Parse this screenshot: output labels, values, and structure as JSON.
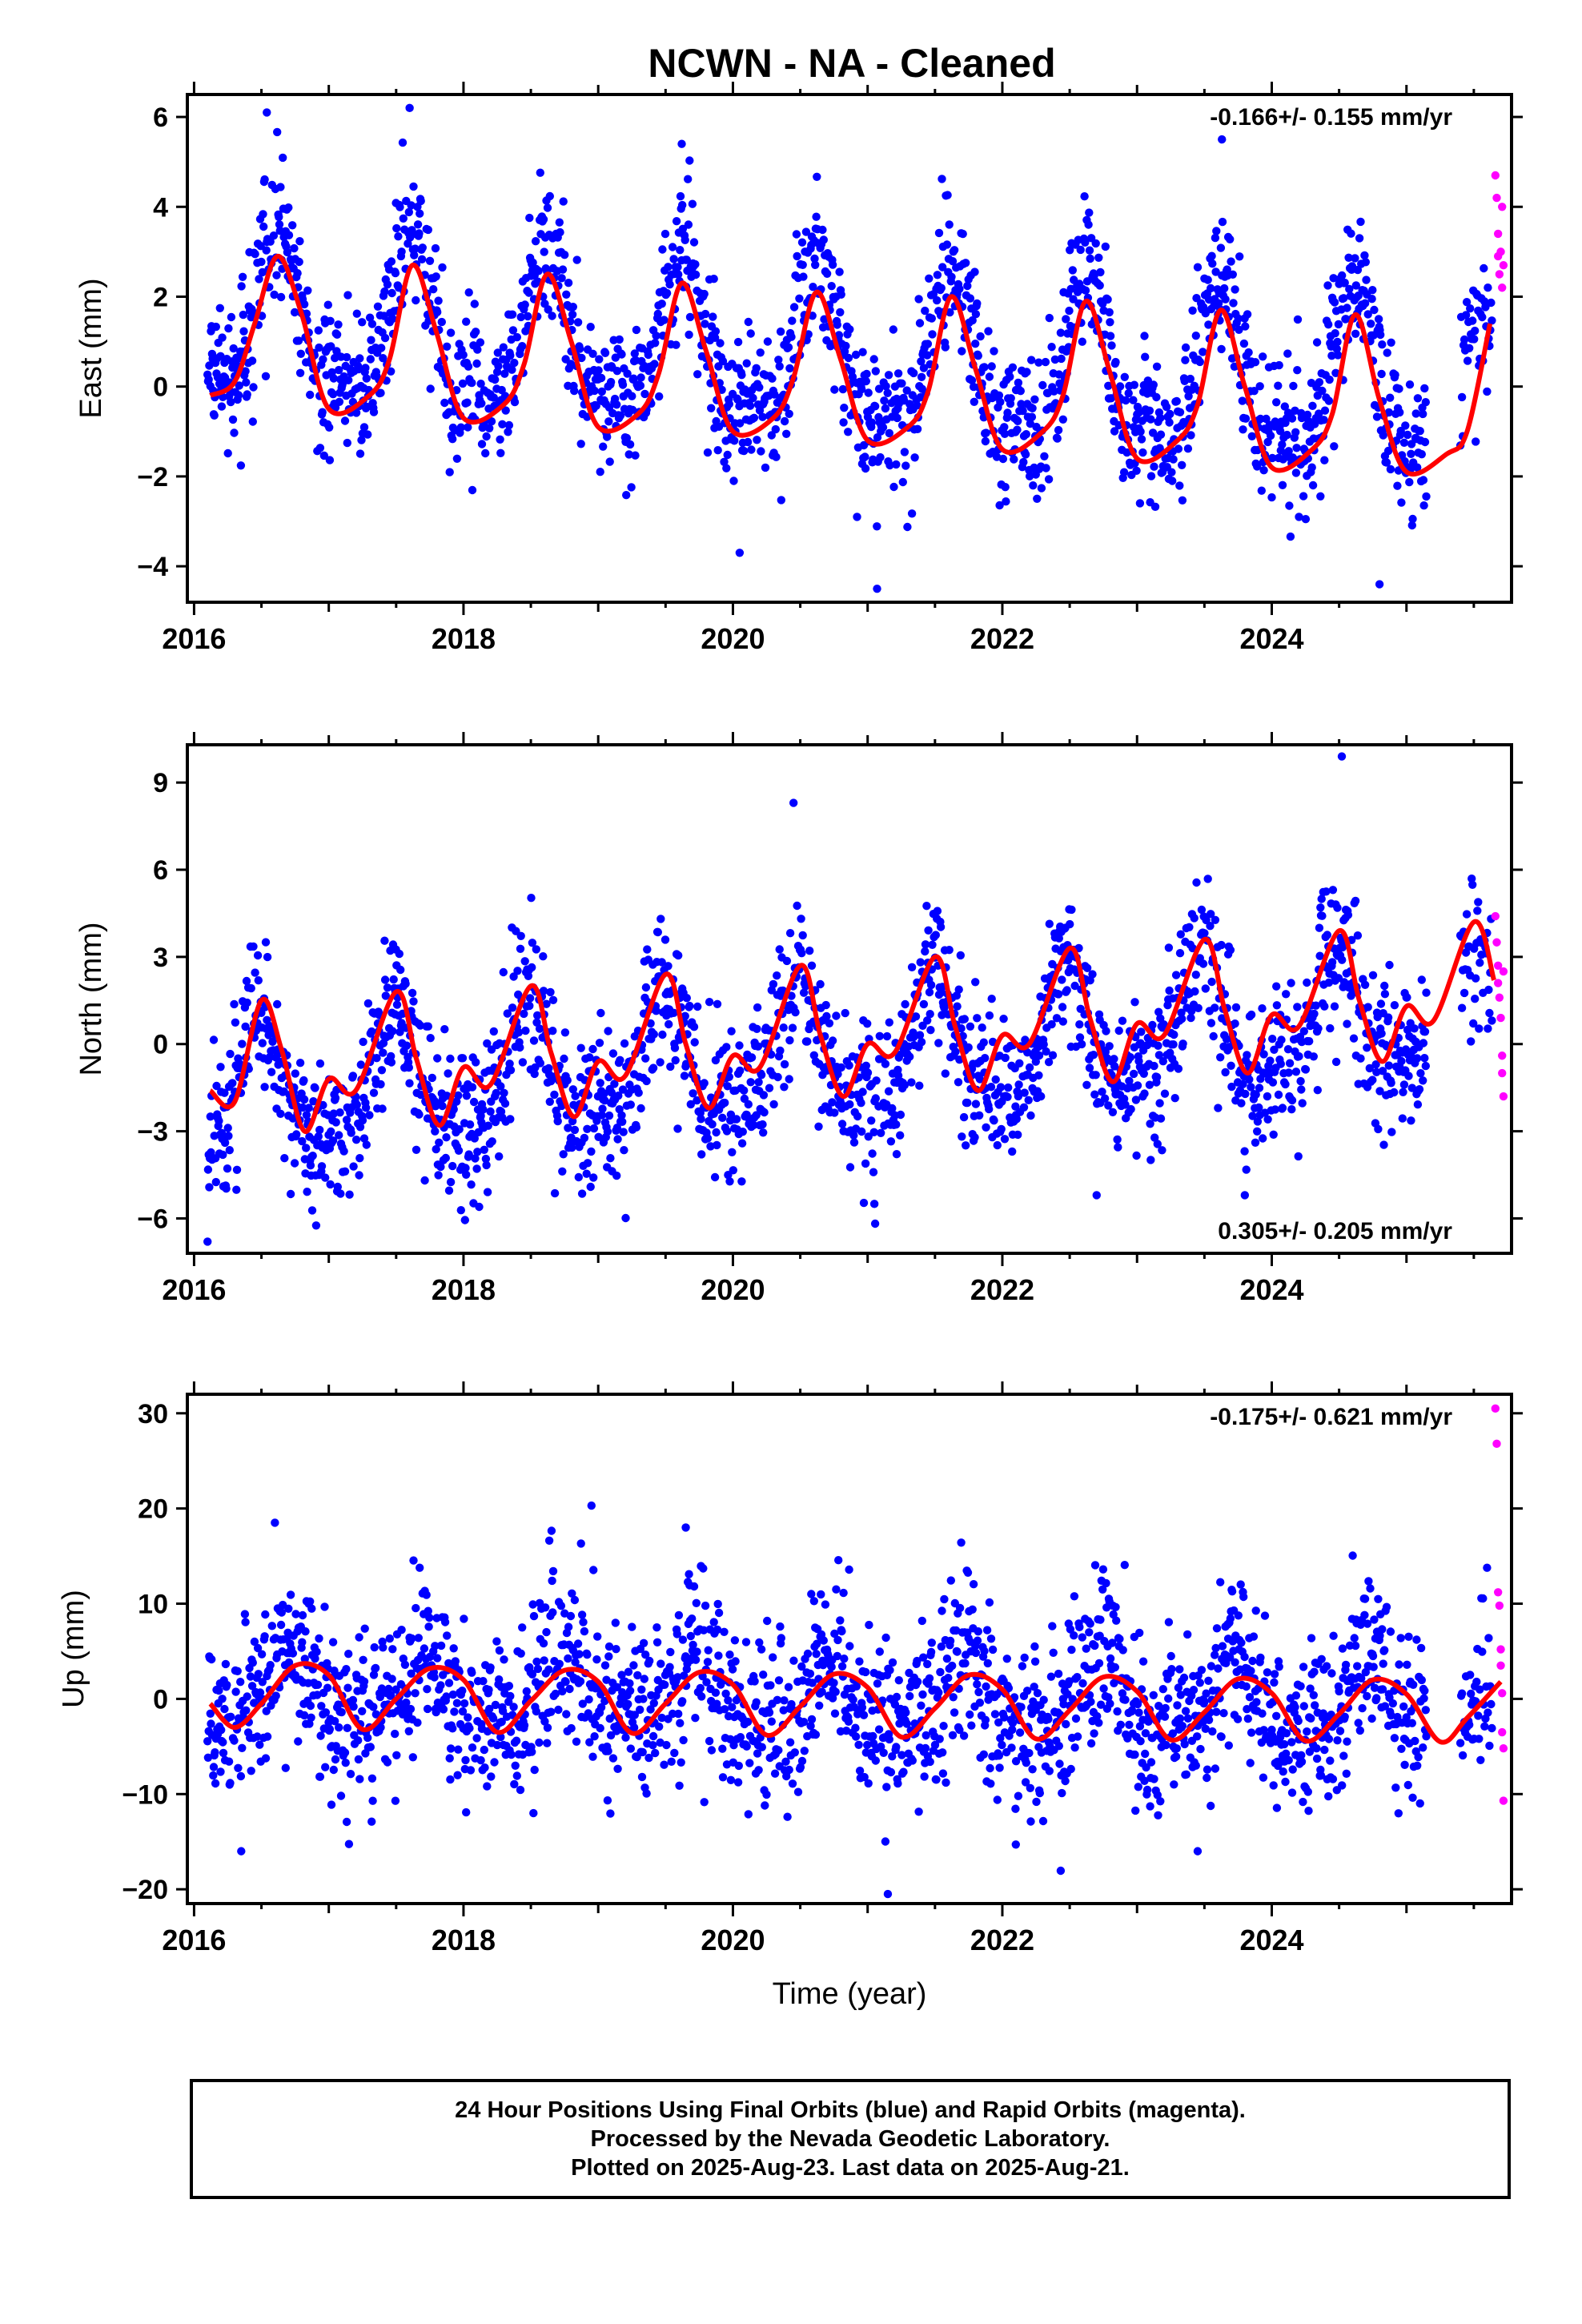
{
  "title": "NCWN  - NA - Cleaned",
  "colors": {
    "final": "#0000ff",
    "rapid": "#ff00ff",
    "model": "#ff0000",
    "frame": "#000000"
  },
  "caption": {
    "line1": "24 Hour Positions Using Final Orbits (blue) and Rapid Orbits (magenta).",
    "line2": "Processed by the Nevada Geodetic Laboratory.",
    "line3": "Plotted on 2025-Aug-23. Last data on 2025-Aug-21."
  },
  "chart_data": [
    {
      "type": "scatter",
      "component": "east",
      "ylabel": "East (mm)",
      "xlabel": "",
      "rate_label": "-0.166+/- 0.155 mm/yr",
      "rate_position": "top-right",
      "xlim": [
        2015.95,
        2025.78
      ],
      "ylim": [
        -4.8,
        6.5
      ],
      "xticks": [
        2016,
        2018,
        2020,
        2022,
        2024
      ],
      "yticks": [
        -4,
        -2,
        0,
        2,
        4,
        6
      ],
      "model": {
        "x": [
          2016.12,
          2016.3,
          2016.45,
          2016.62,
          2016.8,
          2017.0,
          2017.3,
          2017.45,
          2017.62,
          2017.8,
          2018.0,
          2018.3,
          2018.45,
          2018.62,
          2018.8,
          2019.0,
          2019.3,
          2019.45,
          2019.62,
          2019.8,
          2020.0,
          2020.3,
          2020.45,
          2020.62,
          2020.8,
          2021.0,
          2021.3,
          2021.45,
          2021.62,
          2021.8,
          2022.0,
          2022.3,
          2022.45,
          2022.62,
          2022.8,
          2023.0,
          2023.3,
          2023.45,
          2023.62,
          2023.8,
          2024.0,
          2024.3,
          2024.45,
          2024.62,
          2024.8,
          2025.0,
          2025.3,
          2025.45,
          2025.62
        ],
        "y": [
          -0.2,
          0.1,
          1.4,
          2.9,
          1.6,
          -0.5,
          -0.2,
          0.6,
          2.7,
          1.2,
          -0.7,
          -0.4,
          0.5,
          2.5,
          1.0,
          -0.9,
          -0.6,
          0.3,
          2.3,
          0.8,
          -1.0,
          -0.7,
          0.2,
          2.1,
          0.6,
          -1.2,
          -0.9,
          -0.1,
          2.0,
          0.4,
          -1.4,
          -1.0,
          -0.2,
          1.9,
          0.3,
          -1.6,
          -1.2,
          -0.4,
          1.7,
          0.0,
          -1.8,
          -1.4,
          -0.6,
          1.6,
          -0.3,
          -1.9,
          -1.5,
          -1.0,
          1.4
        ]
      },
      "series": [
        {
          "name": "Final Orbits",
          "color": "#0000ff",
          "amp": 1.7,
          "phase": 0.62,
          "trend": -0.166,
          "offset": 0.6,
          "noise": 0.8,
          "outliers": [
            [
              2016.54,
              6.1
            ],
            [
              2017.6,
              6.2
            ],
            [
              2019.62,
              5.4
            ],
            [
              2023.63,
              5.5
            ],
            [
              2020.05,
              -3.7
            ],
            [
              2021.07,
              -4.5
            ],
            [
              2024.8,
              -4.4
            ]
          ]
        },
        {
          "name": "Rapid Orbits",
          "color": "#ff00ff",
          "x": [
            2025.66,
            2025.67,
            2025.68,
            2025.68,
            2025.69,
            2025.7,
            2025.71,
            2025.71,
            2025.72
          ],
          "y": [
            4.7,
            4.2,
            3.4,
            2.9,
            2.5,
            3.0,
            2.2,
            4.0,
            2.7
          ]
        }
      ]
    },
    {
      "type": "scatter",
      "component": "north",
      "ylabel": "North (mm)",
      "xlabel": "",
      "rate_label": "0.305+/- 0.205 mm/yr",
      "rate_position": "bottom-right",
      "xlim": [
        2015.95,
        2025.78
      ],
      "ylim": [
        -7.2,
        10.3
      ],
      "xticks": [
        2016,
        2018,
        2020,
        2022,
        2024
      ],
      "yticks": [
        -6,
        -3,
        0,
        3,
        6,
        9
      ],
      "model": {
        "x": [
          2016.12,
          2016.3,
          2016.5,
          2016.65,
          2016.82,
          2017.0,
          2017.2,
          2017.5,
          2017.65,
          2017.82,
          2018.0,
          2018.2,
          2018.5,
          2018.65,
          2018.82,
          2019.0,
          2019.2,
          2019.5,
          2019.65,
          2019.82,
          2020.0,
          2020.2,
          2020.5,
          2020.65,
          2020.82,
          2021.0,
          2021.2,
          2021.5,
          2021.65,
          2021.82,
          2022.0,
          2022.2,
          2022.5,
          2022.65,
          2022.82,
          2023.0,
          2023.2,
          2023.5,
          2023.65,
          2023.82,
          2024.0,
          2024.2,
          2024.5,
          2024.65,
          2024.82,
          2025.0,
          2025.2,
          2025.5,
          2025.65
        ],
        "y": [
          -1.6,
          -2.0,
          1.5,
          -0.2,
          -3.0,
          -1.2,
          -1.6,
          1.8,
          -0.5,
          -2.8,
          -0.8,
          -1.4,
          2.0,
          -0.3,
          -2.5,
          -0.6,
          -1.1,
          2.4,
          0.0,
          -2.2,
          -0.4,
          -0.8,
          2.7,
          0.3,
          -1.8,
          0.0,
          -0.3,
          3.0,
          0.6,
          -1.6,
          0.3,
          0.0,
          3.3,
          0.9,
          -1.3,
          0.7,
          0.3,
          3.6,
          1.2,
          -1.0,
          1.0,
          0.6,
          3.9,
          1.5,
          -0.6,
          1.3,
          0.8,
          4.2,
          2.2
        ]
      },
      "series": [
        {
          "name": "Final Orbits",
          "color": "#0000ff",
          "amp": 2.0,
          "phase": 0.48,
          "trend": 0.305,
          "offset": -0.4,
          "noise": 1.3,
          "outliers": [
            [
              2016.1,
              -6.8
            ],
            [
              2020.45,
              8.3
            ],
            [
              2024.52,
              9.9
            ],
            [
              2021.05,
              -5.5
            ],
            [
              2022.7,
              -5.2
            ],
            [
              2023.8,
              -5.2
            ]
          ]
        },
        {
          "name": "Rapid Orbits",
          "color": "#ff00ff",
          "x": [
            2025.66,
            2025.67,
            2025.68,
            2025.68,
            2025.69,
            2025.7,
            2025.71,
            2025.71,
            2025.72,
            2025.72
          ],
          "y": [
            4.4,
            3.5,
            2.7,
            2.1,
            1.6,
            0.9,
            -0.4,
            -1.0,
            -1.8,
            2.5
          ]
        }
      ]
    },
    {
      "type": "scatter",
      "component": "up",
      "ylabel": "Up (mm)",
      "xlabel": "Time (year)",
      "rate_label": "-0.175+/- 0.621 mm/yr",
      "rate_position": "top-right",
      "xlim": [
        2015.95,
        2025.78
      ],
      "ylim": [
        -21.5,
        32
      ],
      "xticks": [
        2016,
        2018,
        2020,
        2022,
        2024
      ],
      "yticks": [
        -20,
        -10,
        0,
        10,
        20,
        30
      ],
      "model": {
        "x": [
          2016.12,
          2016.3,
          2016.5,
          2016.75,
          2017.0,
          2017.25,
          2017.5,
          2017.75,
          2018.0,
          2018.25,
          2018.5,
          2018.75,
          2019.0,
          2019.25,
          2019.5,
          2019.75,
          2020.0,
          2020.25,
          2020.5,
          2020.75,
          2021.0,
          2021.25,
          2021.5,
          2021.75,
          2022.0,
          2022.25,
          2022.5,
          2022.75,
          2023.0,
          2023.25,
          2023.5,
          2023.75,
          2024.0,
          2024.25,
          2024.5,
          2024.75,
          2025.0,
          2025.25,
          2025.45,
          2025.7
        ],
        "y": [
          -0.5,
          -3.0,
          -0.5,
          3.5,
          2.5,
          -3.2,
          0.0,
          3.2,
          2.0,
          -3.5,
          -0.2,
          3.0,
          1.8,
          -3.6,
          -0.5,
          2.8,
          1.5,
          -3.8,
          -0.8,
          2.6,
          1.2,
          -4.0,
          -1.0,
          2.5,
          1.0,
          -4.2,
          -1.2,
          2.3,
          0.8,
          -4.3,
          -1.4,
          2.1,
          0.6,
          -4.4,
          -1.6,
          2.0,
          0.5,
          -4.5,
          -2.0,
          1.8
        ]
      },
      "series": [
        {
          "name": "Final Orbits",
          "color": "#0000ff",
          "amp": 3.6,
          "phase": 0.72,
          "trend": -0.175,
          "offset": 0.0,
          "noise": 4.4,
          "outliers": [
            [
              2016.6,
              18.5
            ],
            [
              2018.95,
              20.3
            ],
            [
              2019.65,
              18.0
            ],
            [
              2016.35,
              -16.0
            ],
            [
              2021.15,
              -20.5
            ],
            [
              2022.1,
              -15.3
            ],
            [
              2023.45,
              -16.0
            ]
          ]
        },
        {
          "name": "Rapid Orbits",
          "color": "#ff00ff",
          "x": [
            2025.66,
            2025.67,
            2025.68,
            2025.69,
            2025.7,
            2025.7,
            2025.71,
            2025.71,
            2025.72,
            2025.72
          ],
          "y": [
            30.5,
            26.8,
            11.2,
            9.8,
            5.2,
            3.5,
            0.6,
            -3.5,
            -5.2,
            -10.7
          ]
        }
      ]
    }
  ]
}
